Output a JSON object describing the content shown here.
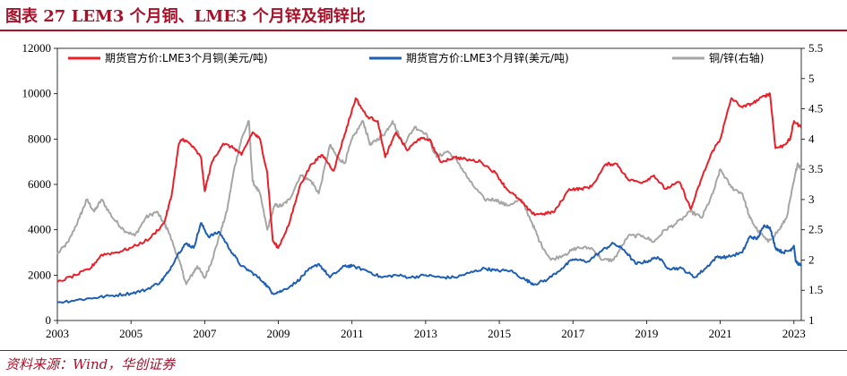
{
  "header": {
    "title": "图表 27  LEM3 个月铜、LME3 个月锌及铜锌比"
  },
  "footer": {
    "source": "资料来源：Wind，华创证券"
  },
  "chart_data": {
    "type": "line",
    "title": "",
    "xlabel": "",
    "ylabel": "",
    "x_ticks": [
      "2003",
      "2005",
      "2007",
      "2009",
      "2011",
      "2013",
      "2015",
      "2017",
      "2019",
      "2021",
      "2023"
    ],
    "y_left": {
      "range": [
        0,
        12000
      ],
      "ticks": [
        "0",
        "2000",
        "4000",
        "6000",
        "8000",
        "10000",
        "12000"
      ]
    },
    "y_right": {
      "range": [
        1,
        5.5
      ],
      "ticks": [
        "1",
        "1.5",
        "2",
        "2.5",
        "3",
        "3.5",
        "4",
        "4.5",
        "5",
        "5.5"
      ]
    },
    "legend_placement": "top",
    "x_range": [
      2003.0,
      2023.2
    ],
    "series": [
      {
        "name": "期货官方价:LME3个月铜(美元/吨)",
        "axis": "left",
        "color": "#e8202a",
        "points": [
          [
            2003.0,
            1700
          ],
          [
            2003.5,
            2000
          ],
          [
            2003.9,
            2300
          ],
          [
            2004.2,
            2900
          ],
          [
            2004.6,
            3000
          ],
          [
            2005.0,
            3200
          ],
          [
            2005.5,
            3600
          ],
          [
            2005.9,
            4300
          ],
          [
            2006.1,
            5500
          ],
          [
            2006.3,
            7800
          ],
          [
            2006.4,
            8000
          ],
          [
            2006.6,
            7800
          ],
          [
            2006.9,
            7200
          ],
          [
            2007.0,
            5700
          ],
          [
            2007.2,
            7000
          ],
          [
            2007.5,
            7800
          ],
          [
            2007.8,
            7600
          ],
          [
            2008.0,
            7300
          ],
          [
            2008.3,
            8300
          ],
          [
            2008.5,
            8000
          ],
          [
            2008.7,
            6500
          ],
          [
            2008.85,
            3500
          ],
          [
            2009.0,
            3200
          ],
          [
            2009.3,
            4300
          ],
          [
            2009.6,
            6000
          ],
          [
            2009.9,
            6900
          ],
          [
            2010.2,
            7300
          ],
          [
            2010.5,
            6600
          ],
          [
            2010.8,
            8200
          ],
          [
            2011.1,
            9800
          ],
          [
            2011.4,
            9000
          ],
          [
            2011.7,
            8800
          ],
          [
            2011.9,
            7200
          ],
          [
            2012.2,
            8300
          ],
          [
            2012.5,
            7500
          ],
          [
            2012.8,
            8000
          ],
          [
            2013.1,
            8000
          ],
          [
            2013.4,
            7000
          ],
          [
            2013.8,
            7200
          ],
          [
            2014.1,
            7100
          ],
          [
            2014.5,
            7000
          ],
          [
            2014.9,
            6500
          ],
          [
            2015.2,
            5800
          ],
          [
            2015.5,
            5400
          ],
          [
            2015.9,
            4700
          ],
          [
            2016.2,
            4700
          ],
          [
            2016.5,
            4800
          ],
          [
            2016.9,
            5800
          ],
          [
            2017.2,
            5800
          ],
          [
            2017.5,
            5900
          ],
          [
            2017.9,
            6900
          ],
          [
            2018.2,
            6900
          ],
          [
            2018.5,
            6200
          ],
          [
            2018.9,
            6100
          ],
          [
            2019.2,
            6400
          ],
          [
            2019.5,
            5800
          ],
          [
            2019.9,
            6100
          ],
          [
            2020.2,
            4900
          ],
          [
            2020.5,
            6300
          ],
          [
            2020.8,
            7500
          ],
          [
            2021.0,
            8000
          ],
          [
            2021.3,
            9800
          ],
          [
            2021.6,
            9400
          ],
          [
            2021.9,
            9600
          ],
          [
            2022.2,
            9900
          ],
          [
            2022.35,
            10000
          ],
          [
            2022.5,
            7600
          ],
          [
            2022.7,
            7700
          ],
          [
            2022.9,
            8000
          ],
          [
            2023.0,
            8800
          ],
          [
            2023.2,
            8500
          ]
        ]
      },
      {
        "name": "期货官方价:LME3个月锌(美元/吨)",
        "axis": "left",
        "color": "#1e5fb4",
        "points": [
          [
            2003.0,
            800
          ],
          [
            2003.5,
            900
          ],
          [
            2004.0,
            1000
          ],
          [
            2004.5,
            1100
          ],
          [
            2005.0,
            1200
          ],
          [
            2005.4,
            1350
          ],
          [
            2005.8,
            1700
          ],
          [
            2006.0,
            2100
          ],
          [
            2006.3,
            3000
          ],
          [
            2006.5,
            3400
          ],
          [
            2006.7,
            3200
          ],
          [
            2006.9,
            4300
          ],
          [
            2007.1,
            3700
          ],
          [
            2007.4,
            3900
          ],
          [
            2007.7,
            3100
          ],
          [
            2008.0,
            2400
          ],
          [
            2008.3,
            2100
          ],
          [
            2008.6,
            1700
          ],
          [
            2008.85,
            1200
          ],
          [
            2009.1,
            1300
          ],
          [
            2009.5,
            1700
          ],
          [
            2009.8,
            2200
          ],
          [
            2010.1,
            2500
          ],
          [
            2010.4,
            1900
          ],
          [
            2010.8,
            2400
          ],
          [
            2011.0,
            2400
          ],
          [
            2011.4,
            2200
          ],
          [
            2011.8,
            1900
          ],
          [
            2012.2,
            2000
          ],
          [
            2012.6,
            1900
          ],
          [
            2013.0,
            2000
          ],
          [
            2013.4,
            1900
          ],
          [
            2013.8,
            1900
          ],
          [
            2014.2,
            2100
          ],
          [
            2014.6,
            2300
          ],
          [
            2014.9,
            2200
          ],
          [
            2015.3,
            2200
          ],
          [
            2015.7,
            1800
          ],
          [
            2015.95,
            1600
          ],
          [
            2016.3,
            1800
          ],
          [
            2016.7,
            2300
          ],
          [
            2017.0,
            2700
          ],
          [
            2017.4,
            2600
          ],
          [
            2017.8,
            3100
          ],
          [
            2018.1,
            3400
          ],
          [
            2018.4,
            3100
          ],
          [
            2018.7,
            2500
          ],
          [
            2019.0,
            2600
          ],
          [
            2019.3,
            2800
          ],
          [
            2019.6,
            2300
          ],
          [
            2019.95,
            2300
          ],
          [
            2020.3,
            1900
          ],
          [
            2020.6,
            2300
          ],
          [
            2020.9,
            2800
          ],
          [
            2021.2,
            2800
          ],
          [
            2021.6,
            3000
          ],
          [
            2021.8,
            3700
          ],
          [
            2022.0,
            3600
          ],
          [
            2022.2,
            4200
          ],
          [
            2022.35,
            4100
          ],
          [
            2022.5,
            3200
          ],
          [
            2022.7,
            3000
          ],
          [
            2022.9,
            3100
          ],
          [
            2023.0,
            3300
          ],
          [
            2023.05,
            2600
          ],
          [
            2023.2,
            2400
          ]
        ]
      },
      {
        "name": "铜/锌(右轴)",
        "axis": "right",
        "color": "#a6a6a6",
        "points": [
          [
            2003.0,
            2.1
          ],
          [
            2003.3,
            2.3
          ],
          [
            2003.6,
            2.7
          ],
          [
            2003.8,
            3.0
          ],
          [
            2004.0,
            2.8
          ],
          [
            2004.2,
            3.0
          ],
          [
            2004.5,
            2.7
          ],
          [
            2004.8,
            2.5
          ],
          [
            2005.1,
            2.4
          ],
          [
            2005.4,
            2.7
          ],
          [
            2005.7,
            2.8
          ],
          [
            2005.9,
            2.6
          ],
          [
            2006.0,
            2.5
          ],
          [
            2006.3,
            2.0
          ],
          [
            2006.5,
            1.6
          ],
          [
            2006.7,
            1.8
          ],
          [
            2006.8,
            1.9
          ],
          [
            2007.0,
            1.7
          ],
          [
            2007.2,
            2.0
          ],
          [
            2007.4,
            2.4
          ],
          [
            2007.6,
            2.8
          ],
          [
            2007.8,
            3.5
          ],
          [
            2008.0,
            4.0
          ],
          [
            2008.2,
            4.3
          ],
          [
            2008.3,
            3.3
          ],
          [
            2008.5,
            3.1
          ],
          [
            2008.7,
            2.5
          ],
          [
            2008.9,
            2.9
          ],
          [
            2009.1,
            2.9
          ],
          [
            2009.3,
            3.0
          ],
          [
            2009.6,
            3.4
          ],
          [
            2009.9,
            3.3
          ],
          [
            2010.1,
            3.1
          ],
          [
            2010.4,
            3.9
          ],
          [
            2010.6,
            3.7
          ],
          [
            2010.8,
            3.6
          ],
          [
            2011.0,
            4.0
          ],
          [
            2011.3,
            4.3
          ],
          [
            2011.5,
            3.9
          ],
          [
            2011.7,
            4.0
          ],
          [
            2011.9,
            4.1
          ],
          [
            2012.1,
            4.3
          ],
          [
            2012.4,
            3.9
          ],
          [
            2012.7,
            4.2
          ],
          [
            2013.0,
            4.1
          ],
          [
            2013.3,
            3.7
          ],
          [
            2013.6,
            3.8
          ],
          [
            2013.9,
            3.6
          ],
          [
            2014.2,
            3.3
          ],
          [
            2014.6,
            3.0
          ],
          [
            2014.9,
            3.0
          ],
          [
            2015.2,
            2.9
          ],
          [
            2015.6,
            3.0
          ],
          [
            2015.9,
            2.6
          ],
          [
            2016.1,
            2.3
          ],
          [
            2016.4,
            2.0
          ],
          [
            2016.8,
            2.1
          ],
          [
            2017.1,
            2.2
          ],
          [
            2017.5,
            2.2
          ],
          [
            2017.8,
            2.0
          ],
          [
            2018.1,
            2.0
          ],
          [
            2018.5,
            2.4
          ],
          [
            2018.9,
            2.4
          ],
          [
            2019.2,
            2.3
          ],
          [
            2019.5,
            2.5
          ],
          [
            2019.8,
            2.6
          ],
          [
            2020.2,
            2.8
          ],
          [
            2020.5,
            2.7
          ],
          [
            2020.8,
            3.1
          ],
          [
            2021.0,
            3.5
          ],
          [
            2021.3,
            3.2
          ],
          [
            2021.6,
            3.1
          ],
          [
            2021.8,
            2.7
          ],
          [
            2022.0,
            2.5
          ],
          [
            2022.3,
            2.3
          ],
          [
            2022.6,
            2.5
          ],
          [
            2022.8,
            2.7
          ],
          [
            2023.0,
            3.3
          ],
          [
            2023.1,
            3.6
          ],
          [
            2023.2,
            3.5
          ]
        ]
      }
    ]
  }
}
